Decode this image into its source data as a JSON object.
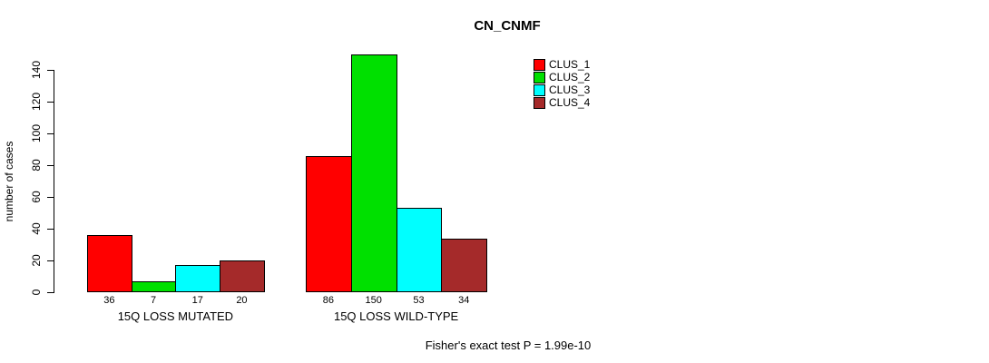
{
  "chart_data": {
    "type": "bar",
    "title": "CN_CNMF",
    "ylabel": "number of cases",
    "ylim": [
      0,
      140
    ],
    "yticks": [
      0,
      20,
      40,
      60,
      80,
      100,
      120,
      140
    ],
    "grid": false,
    "legend_position": "top-right",
    "categories": [
      "15Q LOSS MUTATED",
      "15Q LOSS WILD-TYPE"
    ],
    "series": [
      {
        "name": "CLUS_1",
        "color": "#FF0000",
        "values": [
          36,
          86
        ]
      },
      {
        "name": "CLUS_2",
        "color": "#00E000",
        "values": [
          7,
          150
        ]
      },
      {
        "name": "CLUS_3",
        "color": "#00FFFF",
        "values": [
          17,
          53
        ]
      },
      {
        "name": "CLUS_4",
        "color": "#A52A2A",
        "values": [
          20,
          34
        ]
      }
    ],
    "annotation": "Fisher's exact test P = 1.99e-10"
  }
}
